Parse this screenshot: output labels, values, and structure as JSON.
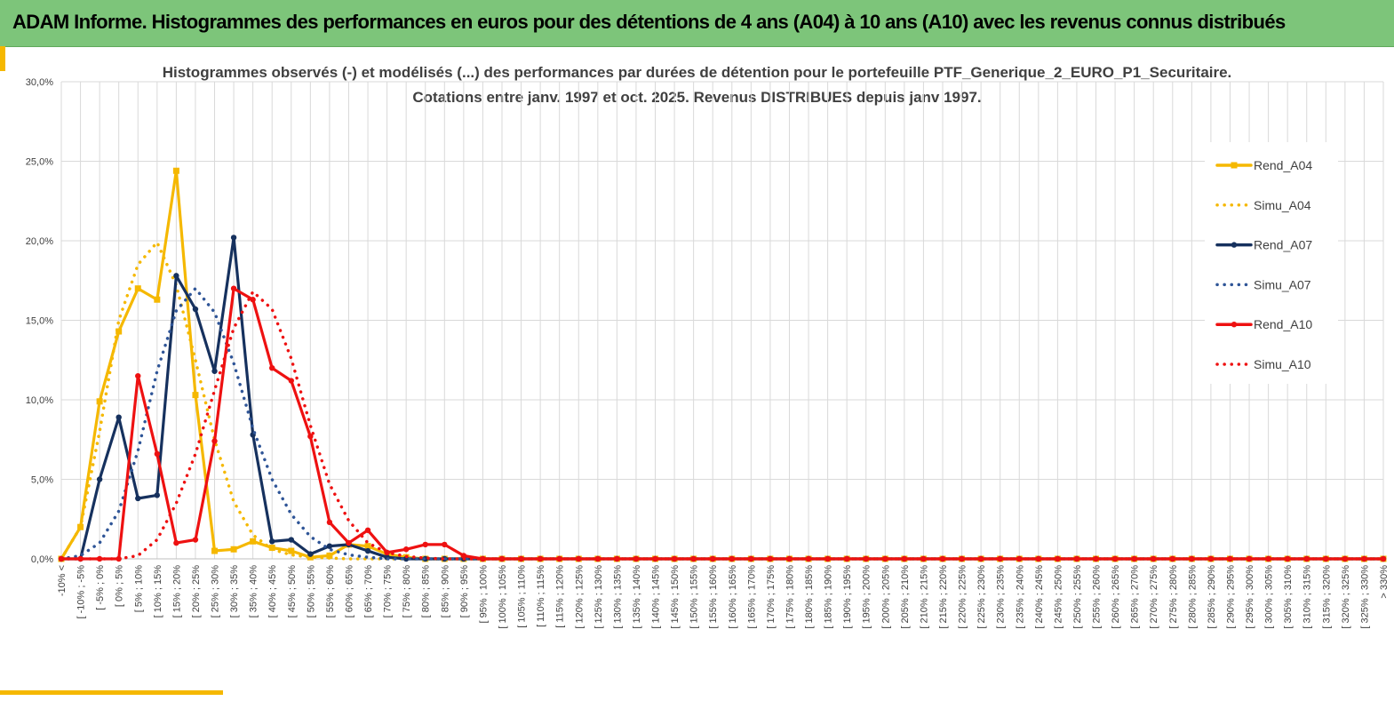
{
  "header": {
    "title": "ADAM Informe. Histogrammes des performances en euros pour des détentions de 4 ans (A04) à 10 ans (A10) avec les revenus connus distribués"
  },
  "colors": {
    "header_bg": "#7dc57a",
    "accent": "#f5b800",
    "a04": "#f5b800",
    "a07": "#16315e",
    "a10": "#ee1111",
    "a07_simu": "#2f5597",
    "grid": "#d9d9d9"
  },
  "chart_data": {
    "type": "line",
    "title_line1": "Histogrammes observés (-) et modélisés (...) des performances par durées de détention pour le portefeuille PTF_Generique_2_EURO_P1_Securitaire.",
    "title_line2": "Cotations entre janv. 1997 et oct. 2025. Revenus DISTRIBUES depuis janv 1997.",
    "xlabel": "",
    "ylabel": "",
    "ylim": [
      0,
      30
    ],
    "y_ticks": [
      "0,0%",
      "5,0%",
      "10,0%",
      "15,0%",
      "20,0%",
      "25,0%",
      "30,0%"
    ],
    "grid": true,
    "legend_position": "right",
    "categories": [
      "-10% <",
      "[ -10% ; -5%",
      "[ -5% ; 0%",
      "[ 0% ; 5%",
      "[ 5% ; 10%",
      "[ 10% ; 15%",
      "[ 15% ; 20%",
      "[ 20% ; 25%",
      "[ 25% ; 30%",
      "[ 30% ; 35%",
      "[ 35% ; 40%",
      "[ 40% ; 45%",
      "[ 45% ; 50%",
      "[ 50% ; 55%",
      "[ 55% ; 60%",
      "[ 60% ; 65%",
      "[ 65% ; 70%",
      "[ 70% ; 75%",
      "[ 75% ; 80%",
      "[ 80% ; 85%",
      "[ 85% ; 90%",
      "[ 90% ; 95%",
      "[ 95% ; 100%",
      "[ 100% ; 105%",
      "[ 105% ; 110%",
      "[ 110% ; 115%",
      "[ 115% ; 120%",
      "[ 120% ; 125%",
      "[ 125% ; 130%",
      "[ 130% ; 135%",
      "[ 135% ; 140%",
      "[ 140% ; 145%",
      "[ 145% ; 150%",
      "[ 150% ; 155%",
      "[ 155% ; 160%",
      "[ 160% ; 165%",
      "[ 165% ; 170%",
      "[ 170% ; 175%",
      "[ 175% ; 180%",
      "[ 180% ; 185%",
      "[ 185% ; 190%",
      "[ 190% ; 195%",
      "[ 195% ; 200%",
      "[ 200% ; 205%",
      "[ 205% ; 210%",
      "[ 210% ; 215%",
      "[ 215% ; 220%",
      "[ 220% ; 225%",
      "[ 225% ; 230%",
      "[ 230% ; 235%",
      "[ 235% ; 240%",
      "[ 240% ; 245%",
      "[ 245% ; 250%",
      "[ 250% ; 255%",
      "[ 255% ; 260%",
      "[ 260% ; 265%",
      "[ 265% ; 270%",
      "[ 270% ; 275%",
      "[ 275% ; 280%",
      "[ 280% ; 285%",
      "[ 285% ; 290%",
      "[ 290% ; 295%",
      "[ 295% ; 300%",
      "[ 300% ; 305%",
      "[ 305% ; 310%",
      "[ 310% ; 315%",
      "[ 315% ; 320%",
      "[ 320% ; 325%",
      "[ 325% ; 330%",
      "> 330%"
    ],
    "series": [
      {
        "name": "Rend_A04",
        "style": "solid",
        "marker": "square",
        "color": "#f5b800",
        "values": [
          0,
          2.0,
          9.9,
          14.3,
          17.0,
          16.3,
          24.4,
          10.3,
          0.5,
          0.6,
          1.1,
          0.7,
          0.5,
          0.1,
          0.2,
          0.9,
          0.8,
          0.3,
          0.1,
          0,
          0,
          0,
          0,
          0,
          0,
          0,
          0,
          0,
          0,
          0,
          0,
          0,
          0,
          0,
          0,
          0,
          0,
          0,
          0,
          0,
          0,
          0,
          0,
          0,
          0,
          0,
          0,
          0,
          0,
          0,
          0,
          0,
          0,
          0,
          0,
          0,
          0,
          0,
          0,
          0,
          0,
          0,
          0,
          0,
          0,
          0,
          0,
          0,
          0,
          0
        ]
      },
      {
        "name": "Simu_A04",
        "style": "dotted",
        "color": "#f5b800",
        "values": [
          0,
          2.0,
          8.0,
          15.0,
          18.5,
          19.9,
          17.2,
          12.5,
          7.5,
          3.6,
          1.5,
          0.6,
          0.25,
          0.1,
          0.05,
          0,
          0,
          0,
          0,
          0,
          0,
          0,
          0,
          0,
          0,
          0,
          0,
          0,
          0,
          0,
          0,
          0,
          0,
          0,
          0,
          0,
          0,
          0,
          0,
          0,
          0,
          0,
          0,
          0,
          0,
          0,
          0,
          0,
          0,
          0,
          0,
          0,
          0,
          0,
          0,
          0,
          0,
          0,
          0,
          0,
          0,
          0,
          0,
          0,
          0,
          0,
          0,
          0,
          0,
          0
        ]
      },
      {
        "name": "Rend_A07",
        "style": "solid",
        "marker": "circle",
        "color": "#16315e",
        "values": [
          0,
          0,
          5.0,
          8.9,
          3.8,
          4.0,
          17.8,
          15.7,
          11.8,
          20.2,
          7.8,
          1.1,
          1.2,
          0.3,
          0.8,
          0.9,
          0.5,
          0.1,
          0,
          0,
          0,
          0,
          0,
          0,
          0,
          0,
          0,
          0,
          0,
          0,
          0,
          0,
          0,
          0,
          0,
          0,
          0,
          0,
          0,
          0,
          0,
          0,
          0,
          0,
          0,
          0,
          0,
          0,
          0,
          0,
          0,
          0,
          0,
          0,
          0,
          0,
          0,
          0,
          0,
          0,
          0,
          0,
          0,
          0,
          0,
          0,
          0,
          0,
          0,
          0
        ]
      },
      {
        "name": "Simu_A07",
        "style": "dotted",
        "color": "#2f5597",
        "values": [
          0,
          0.2,
          1.0,
          3.0,
          6.8,
          11.8,
          15.6,
          17.0,
          15.5,
          12.3,
          8.2,
          5.0,
          2.8,
          1.4,
          0.6,
          0.25,
          0.1,
          0,
          0,
          0,
          0,
          0,
          0,
          0,
          0,
          0,
          0,
          0,
          0,
          0,
          0,
          0,
          0,
          0,
          0,
          0,
          0,
          0,
          0,
          0,
          0,
          0,
          0,
          0,
          0,
          0,
          0,
          0,
          0,
          0,
          0,
          0,
          0,
          0,
          0,
          0,
          0,
          0,
          0,
          0,
          0,
          0,
          0,
          0,
          0,
          0,
          0,
          0,
          0,
          0
        ]
      },
      {
        "name": "Rend_A10",
        "style": "solid",
        "marker": "circle",
        "color": "#ee1111",
        "values": [
          0,
          0,
          0,
          0,
          11.5,
          6.6,
          1.0,
          1.2,
          7.4,
          17.0,
          16.3,
          12.0,
          11.2,
          7.7,
          2.3,
          1.0,
          1.8,
          0.4,
          0.6,
          0.9,
          0.9,
          0.2,
          0,
          0,
          0,
          0,
          0,
          0,
          0,
          0,
          0,
          0,
          0,
          0,
          0,
          0,
          0,
          0,
          0,
          0,
          0,
          0,
          0,
          0,
          0,
          0,
          0,
          0,
          0,
          0,
          0,
          0,
          0,
          0,
          0,
          0,
          0,
          0,
          0,
          0,
          0,
          0,
          0,
          0,
          0,
          0,
          0,
          0,
          0,
          0
        ]
      },
      {
        "name": "Simu_A10",
        "style": "dotted",
        "color": "#ee1111",
        "values": [
          0,
          0,
          0,
          0,
          0.2,
          1.2,
          3.5,
          6.6,
          10.6,
          14.5,
          16.8,
          15.7,
          12.6,
          8.4,
          4.7,
          2.4,
          1.0,
          0.4,
          0.15,
          0.05,
          0,
          0,
          0,
          0,
          0,
          0,
          0,
          0,
          0,
          0,
          0,
          0,
          0,
          0,
          0,
          0,
          0,
          0,
          0,
          0,
          0,
          0,
          0,
          0,
          0,
          0,
          0,
          0,
          0,
          0,
          0,
          0,
          0,
          0,
          0,
          0,
          0,
          0,
          0,
          0,
          0,
          0,
          0,
          0,
          0,
          0,
          0,
          0,
          0,
          0
        ]
      }
    ]
  }
}
